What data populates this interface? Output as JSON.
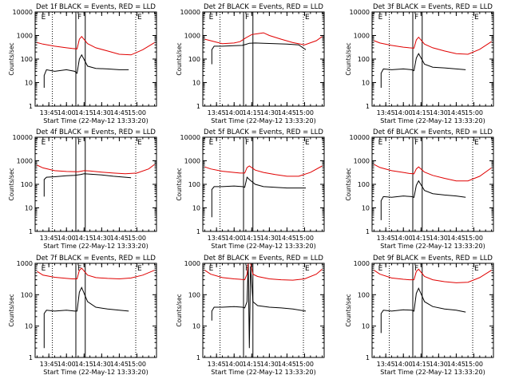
{
  "colors": {
    "events": "#000000",
    "lld": "#e00000",
    "frame": "#000000",
    "background": "#ffffff"
  },
  "common": {
    "ylabel": "Counts/sec",
    "xlabel": "Start Time (22-May-12 13:33:20)",
    "yticks": [
      "1",
      "10",
      "100",
      "1000",
      "10000"
    ],
    "ylim": [
      1,
      10000
    ],
    "yscale": "log",
    "xlim": [
      "13:33:20",
      "15:16:40"
    ],
    "xticks": [
      "13:45",
      "14:00",
      "14:15",
      "14:30",
      "14:45",
      "15:00"
    ],
    "dotted_markers": [
      "13:48",
      "14:59"
    ],
    "solid_markers": [
      "14:08",
      "14:16"
    ],
    "marker_letters": {
      "E_left": "E",
      "F": "F",
      "E_right": "E"
    }
  },
  "chart_data": [
    {
      "type": "line",
      "title": "Det 1f BLACK = Events, RED = LLD",
      "ylim": [
        1,
        10000
      ],
      "y_tick_labels": [
        "1",
        "10",
        "100",
        "1000",
        "10000"
      ],
      "x_tick_labels": [
        "13:45",
        "14:00",
        "14:15",
        "14:30",
        "14:45",
        "15:00"
      ],
      "series": [
        {
          "name": "BLACK = Events",
          "color": "#000000",
          "x": [
            "13:41",
            "13:41",
            "13:43",
            "13:50",
            "14:00",
            "14:07",
            "14:09",
            "14:11",
            "14:13",
            "14:18",
            "14:25",
            "14:35",
            "14:45",
            "14:53"
          ],
          "y": [
            6,
            20,
            35,
            30,
            35,
            30,
            25,
            100,
            150,
            50,
            40,
            38,
            35,
            35
          ]
        },
        {
          "name": "RED = LLD",
          "color": "#e00000",
          "x": [
            "13:35",
            "13:40",
            "13:50",
            "14:00",
            "14:05",
            "14:09",
            "14:11",
            "14:13",
            "14:18",
            "14:25",
            "14:35",
            "14:45",
            "14:55",
            "15:05",
            "15:15"
          ],
          "y": [
            500,
            430,
            350,
            300,
            280,
            270,
            700,
            900,
            450,
            300,
            220,
            160,
            150,
            250,
            500
          ]
        }
      ]
    },
    {
      "type": "line",
      "title": "Det 2f BLACK = Events, RED = LLD",
      "ylim": [
        1,
        10000
      ],
      "y_tick_labels": [
        "1",
        "10",
        "100",
        "1000",
        "10000"
      ],
      "x_tick_labels": [
        "13:45",
        "14:00",
        "14:15",
        "14:30",
        "14:45",
        "15:00"
      ],
      "series": [
        {
          "name": "BLACK = Events",
          "color": "#000000",
          "x": [
            "13:41",
            "13:41",
            "13:43",
            "13:50",
            "14:00",
            "14:07",
            "14:10",
            "14:13",
            "14:18",
            "14:25",
            "14:35",
            "14:45",
            "14:55",
            "15:01"
          ],
          "y": [
            60,
            250,
            350,
            350,
            370,
            380,
            420,
            470,
            480,
            470,
            450,
            430,
            400,
            250
          ]
        },
        {
          "name": "RED = LLD",
          "color": "#e00000",
          "x": [
            "13:35",
            "13:40",
            "13:50",
            "14:00",
            "14:05",
            "14:10",
            "14:15",
            "14:20",
            "14:25",
            "14:30",
            "14:40",
            "14:50",
            "15:00",
            "15:10",
            "15:15"
          ],
          "y": [
            700,
            600,
            450,
            480,
            550,
            800,
            1100,
            1200,
            1300,
            1000,
            700,
            500,
            400,
            600,
            900
          ]
        }
      ]
    },
    {
      "type": "line",
      "title": "Det 3f BLACK = Events, RED = LLD",
      "ylim": [
        1,
        10000
      ],
      "y_tick_labels": [
        "1",
        "10",
        "100",
        "1000",
        "10000"
      ],
      "x_tick_labels": [
        "13:45",
        "14:00",
        "14:15",
        "14:30",
        "14:45",
        "15:00"
      ],
      "series": [
        {
          "name": "BLACK = Events",
          "color": "#000000",
          "x": [
            "13:41",
            "13:41",
            "13:43",
            "13:50",
            "14:00",
            "14:07",
            "14:09",
            "14:11",
            "14:13",
            "14:18",
            "14:25",
            "14:35",
            "14:45",
            "14:53"
          ],
          "y": [
            6,
            25,
            38,
            35,
            38,
            35,
            32,
            110,
            170,
            60,
            45,
            42,
            38,
            35
          ]
        },
        {
          "name": "RED = LLD",
          "color": "#e00000",
          "x": [
            "13:35",
            "13:40",
            "13:50",
            "14:00",
            "14:05",
            "14:09",
            "14:11",
            "14:13",
            "14:18",
            "14:25",
            "14:35",
            "14:45",
            "14:55",
            "15:05",
            "15:15"
          ],
          "y": [
            600,
            480,
            380,
            320,
            300,
            290,
            650,
            850,
            430,
            300,
            220,
            170,
            160,
            260,
            550
          ]
        }
      ]
    },
    {
      "type": "line",
      "title": "Det 4f BLACK = Events, RED = LLD",
      "ylim": [
        1,
        10000
      ],
      "y_tick_labels": [
        "1",
        "10",
        "100",
        "1000",
        "10000"
      ],
      "x_tick_labels": [
        "13:45",
        "14:00",
        "14:15",
        "14:30",
        "14:45",
        "15:00"
      ],
      "series": [
        {
          "name": "BLACK = Events",
          "color": "#000000",
          "x": [
            "13:41",
            "13:41",
            "13:43",
            "13:50",
            "14:00",
            "14:07",
            "14:12",
            "14:15",
            "14:20",
            "14:30",
            "14:40",
            "14:50",
            "14:55"
          ],
          "y": [
            30,
            160,
            200,
            210,
            230,
            240,
            260,
            280,
            270,
            250,
            220,
            200,
            190
          ]
        },
        {
          "name": "RED = LLD",
          "color": "#e00000",
          "x": [
            "13:35",
            "13:40",
            "13:50",
            "14:00",
            "14:10",
            "14:15",
            "14:20",
            "14:30",
            "14:40",
            "14:50",
            "15:00",
            "15:10",
            "15:15"
          ],
          "y": [
            650,
            500,
            380,
            350,
            340,
            380,
            370,
            330,
            300,
            280,
            300,
            450,
            700
          ]
        }
      ]
    },
    {
      "type": "line",
      "title": "Det 5f BLACK = Events, RED = LLD",
      "ylim": [
        1,
        10000
      ],
      "y_tick_labels": [
        "1",
        "10",
        "100",
        "1000",
        "10000"
      ],
      "x_tick_labels": [
        "13:45",
        "14:00",
        "14:15",
        "14:30",
        "14:45",
        "15:00"
      ],
      "series": [
        {
          "name": "BLACK = Events",
          "color": "#000000",
          "x": [
            "13:41",
            "13:41",
            "13:43",
            "13:50",
            "14:00",
            "14:07",
            "14:09",
            "14:11",
            "14:13",
            "14:18",
            "14:25",
            "14:35",
            "14:45",
            "15:01"
          ],
          "y": [
            4,
            60,
            80,
            80,
            85,
            80,
            75,
            200,
            160,
            100,
            80,
            75,
            70,
            70
          ]
        },
        {
          "name": "RED = LLD",
          "color": "#e00000",
          "x": [
            "13:35",
            "13:40",
            "13:50",
            "14:00",
            "14:05",
            "14:09",
            "14:11",
            "14:13",
            "14:18",
            "14:25",
            "14:35",
            "14:45",
            "14:55",
            "15:05",
            "15:15"
          ],
          "y": [
            550,
            450,
            360,
            320,
            300,
            300,
            520,
            600,
            400,
            320,
            260,
            220,
            220,
            320,
            600
          ]
        }
      ]
    },
    {
      "type": "line",
      "title": "Det 6f BLACK = Events, RED = LLD",
      "ylim": [
        1,
        10000
      ],
      "y_tick_labels": [
        "1",
        "10",
        "100",
        "1000",
        "10000"
      ],
      "x_tick_labels": [
        "13:45",
        "14:00",
        "14:15",
        "14:30",
        "14:45",
        "15:00"
      ],
      "series": [
        {
          "name": "BLACK = Events",
          "color": "#000000",
          "x": [
            "13:41",
            "13:41",
            "13:43",
            "13:50",
            "14:00",
            "14:07",
            "14:09",
            "14:11",
            "14:13",
            "14:18",
            "14:25",
            "14:35",
            "14:45",
            "14:53"
          ],
          "y": [
            3,
            20,
            30,
            28,
            32,
            30,
            28,
            90,
            140,
            55,
            40,
            35,
            32,
            28
          ]
        },
        {
          "name": "RED = LLD",
          "color": "#e00000",
          "x": [
            "13:35",
            "13:40",
            "13:50",
            "14:00",
            "14:05",
            "14:09",
            "14:11",
            "14:13",
            "14:18",
            "14:25",
            "14:35",
            "14:45",
            "14:55",
            "15:05",
            "15:15"
          ],
          "y": [
            700,
            520,
            380,
            320,
            290,
            280,
            450,
            550,
            330,
            240,
            180,
            140,
            140,
            220,
            500
          ]
        }
      ]
    },
    {
      "type": "line",
      "title": "Det 7f BLACK = Events, RED = LLD",
      "ylim": [
        1,
        1000
      ],
      "y_tick_labels": [
        "1",
        "10",
        "100",
        "1000"
      ],
      "x_tick_labels": [
        "13:45",
        "14:00",
        "14:15",
        "14:30",
        "14:45",
        "15:00"
      ],
      "series": [
        {
          "name": "BLACK = Events",
          "color": "#000000",
          "x": [
            "13:41",
            "13:41",
            "13:43",
            "13:50",
            "14:00",
            "14:07",
            "14:09",
            "14:11",
            "14:13",
            "14:18",
            "14:25",
            "14:35",
            "14:45",
            "14:53"
          ],
          "y": [
            2,
            25,
            32,
            30,
            32,
            30,
            30,
            120,
            170,
            60,
            40,
            35,
            32,
            30
          ]
        },
        {
          "name": "RED = LLD",
          "color": "#e00000",
          "x": [
            "13:35",
            "13:40",
            "13:50",
            "14:00",
            "14:05",
            "14:09",
            "14:11",
            "14:13",
            "14:18",
            "14:25",
            "14:35",
            "14:45",
            "14:55",
            "15:05",
            "15:15"
          ],
          "y": [
            550,
            420,
            360,
            330,
            320,
            320,
            600,
            700,
            420,
            350,
            330,
            320,
            340,
            420,
            600
          ]
        }
      ]
    },
    {
      "type": "line",
      "title": "Det 8f BLACK = Events, RED = LLD",
      "ylim": [
        1,
        1000
      ],
      "y_tick_labels": [
        "1",
        "10",
        "100",
        "1000"
      ],
      "x_tick_labels": [
        "13:45",
        "14:00",
        "14:15",
        "14:30",
        "14:45",
        "15:00"
      ],
      "series": [
        {
          "name": "BLACK = Events",
          "color": "#000000",
          "x": [
            "13:41",
            "13:41",
            "13:43",
            "13:50",
            "14:00",
            "14:07",
            "14:09",
            "14:11",
            "14:12",
            "14:13",
            "14:14",
            "14:16",
            "14:20",
            "14:30",
            "14:40",
            "14:50",
            "15:01"
          ],
          "y": [
            15,
            30,
            40,
            40,
            42,
            40,
            38,
            60,
            1000,
            2,
            800,
            60,
            45,
            40,
            38,
            35,
            30
          ]
        },
        {
          "name": "RED = LLD",
          "color": "#e00000",
          "x": [
            "13:35",
            "13:40",
            "13:50",
            "14:00",
            "14:05",
            "14:09",
            "14:11",
            "14:12",
            "14:14",
            "14:16",
            "14:20",
            "14:30",
            "14:40",
            "14:50",
            "15:00",
            "15:10",
            "15:15"
          ],
          "y": [
            600,
            450,
            350,
            320,
            310,
            300,
            450,
            1000,
            1000,
            450,
            380,
            320,
            300,
            290,
            320,
            450,
            650
          ]
        }
      ]
    },
    {
      "type": "line",
      "title": "Det 9f BLACK = Events, RED = LLD",
      "ylim": [
        1,
        1000
      ],
      "y_tick_labels": [
        "1",
        "10",
        "100",
        "1000"
      ],
      "x_tick_labels": [
        "13:45",
        "14:00",
        "14:15",
        "14:30",
        "14:45",
        "15:00"
      ],
      "series": [
        {
          "name": "BLACK = Events",
          "color": "#000000",
          "x": [
            "13:41",
            "13:41",
            "13:43",
            "13:50",
            "14:00",
            "14:07",
            "14:09",
            "14:11",
            "14:13",
            "14:18",
            "14:25",
            "14:35",
            "14:45",
            "14:53"
          ],
          "y": [
            6,
            25,
            32,
            30,
            33,
            32,
            30,
            110,
            160,
            60,
            42,
            35,
            32,
            28
          ]
        },
        {
          "name": "RED = LLD",
          "color": "#e00000",
          "x": [
            "13:35",
            "13:40",
            "13:50",
            "14:00",
            "14:05",
            "14:09",
            "14:11",
            "14:13",
            "14:18",
            "14:25",
            "14:35",
            "14:45",
            "14:55",
            "15:05",
            "15:15"
          ],
          "y": [
            600,
            450,
            340,
            310,
            300,
            300,
            550,
            650,
            380,
            300,
            260,
            240,
            250,
            350,
            600
          ]
        }
      ]
    }
  ]
}
